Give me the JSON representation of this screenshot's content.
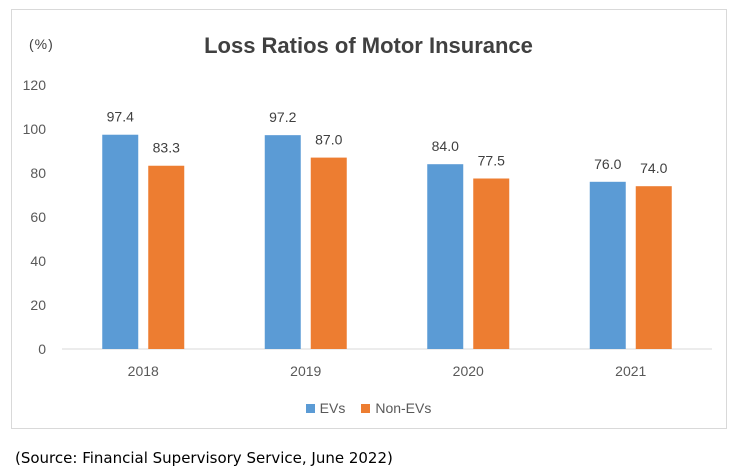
{
  "chart_data": {
    "type": "bar",
    "title": "Loss Ratios of Motor Insurance",
    "unit_label": "(%)",
    "categories": [
      "2018",
      "2019",
      "2020",
      "2021"
    ],
    "series": [
      {
        "name": "EVs",
        "values": [
          97.4,
          97.2,
          84.0,
          76.0
        ],
        "labels": [
          "97.4",
          "97.2",
          "84.0",
          "76.0"
        ],
        "color": "#5b9bd5"
      },
      {
        "name": "Non-EVs",
        "values": [
          83.3,
          87.0,
          77.5,
          74.0
        ],
        "labels": [
          "83.3",
          "87.0",
          "77.5",
          "74.0"
        ],
        "color": "#ed7d31"
      }
    ],
    "yticks": [
      "0",
      "20",
      "40",
      "60",
      "80",
      "100",
      "120"
    ],
    "ylim": [
      0,
      120
    ],
    "grid": false,
    "legend": "bottom"
  },
  "source_note": "(Source:  Financial Supervisory Service, June 2022)"
}
